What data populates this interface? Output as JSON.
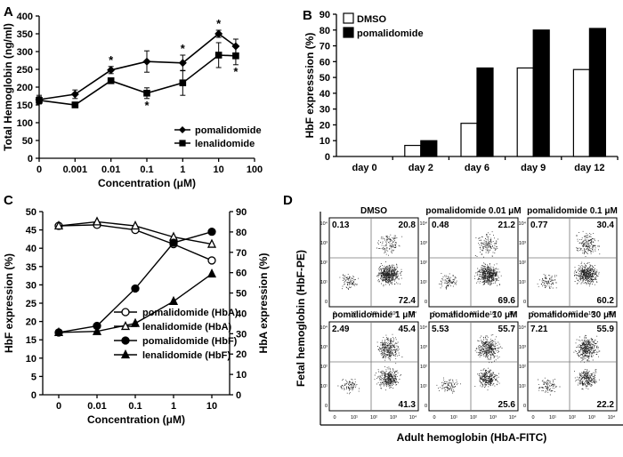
{
  "panels": {
    "A": "A",
    "B": "B",
    "C": "C",
    "D": "D"
  },
  "chart_data": [
    {
      "id": "A",
      "type": "line",
      "title": "",
      "xlabel": "Concentration (μM)",
      "ylabel": "Total Hemoglobin (ng/ml)",
      "xscale": "log",
      "x_tick_labels": [
        "0",
        "0.001",
        "0.01",
        "0.1",
        "1",
        "10",
        "100"
      ],
      "ylim": [
        0,
        400
      ],
      "y_ticks": [
        0,
        50,
        100,
        150,
        200,
        250,
        300,
        350,
        400
      ],
      "series": [
        {
          "name": "pomalidomide",
          "marker": "diamond",
          "x": [
            "0",
            "0.001",
            "0.01",
            "0.1",
            "1",
            "10",
            "30"
          ],
          "values": [
            165,
            180,
            248,
            272,
            268,
            350,
            315
          ],
          "errors": [
            12,
            12,
            10,
            30,
            22,
            10,
            20
          ],
          "significant": [
            false,
            false,
            true,
            false,
            true,
            true,
            false
          ]
        },
        {
          "name": "lenalidomide",
          "marker": "square",
          "x": [
            "0",
            "0.001",
            "0.01",
            "0.1",
            "1",
            "10",
            "30"
          ],
          "values": [
            163,
            150,
            218,
            183,
            212,
            290,
            288
          ],
          "errors": [
            10,
            5,
            5,
            15,
            35,
            35,
            25
          ],
          "significant": [
            false,
            false,
            false,
            true,
            false,
            false,
            true
          ]
        }
      ],
      "annotation": "*",
      "legend_position": "bottom-right"
    },
    {
      "id": "B",
      "type": "bar",
      "xlabel": "",
      "ylabel": "HbF expresssion (%)",
      "ylim": [
        0,
        90
      ],
      "y_ticks": [
        0,
        10,
        20,
        30,
        40,
        50,
        60,
        70,
        80,
        90
      ],
      "categories": [
        "day 0",
        "day 2",
        "day 6",
        "day 9",
        "day 12"
      ],
      "series": [
        {
          "name": "DMSO",
          "color": "#ffffff",
          "values": [
            0,
            7,
            21,
            56,
            55
          ]
        },
        {
          "name": "pomalidomide",
          "color": "#000000",
          "values": [
            0,
            10,
            56,
            80,
            81
          ]
        }
      ],
      "legend_position": "top-left"
    },
    {
      "id": "C",
      "type": "line",
      "xlabel": "Concentration (μM)",
      "ylabel": "HbF expression (%)",
      "ylabel_right": "HbA expression (%)",
      "x_tick_labels": [
        "0",
        "0.01",
        "0.1",
        "1",
        "10"
      ],
      "ylim": [
        0,
        50
      ],
      "y_ticks": [
        0,
        5,
        10,
        15,
        20,
        25,
        30,
        35,
        40,
        45,
        50
      ],
      "ylim_right": [
        0,
        90
      ],
      "y_ticks_right": [
        0,
        10,
        20,
        30,
        40,
        50,
        60,
        70,
        80,
        90
      ],
      "series": [
        {
          "name": "pomalidomide (HbA)",
          "marker": "circle-open",
          "axis": "right",
          "values": [
            83,
            83.5,
            81,
            74,
            66
          ]
        },
        {
          "name": "lenalidomide (HbA)",
          "marker": "triangle-open",
          "axis": "right",
          "values": [
            83,
            85,
            83,
            77.5,
            74
          ]
        },
        {
          "name": "pomalidomide (HbF)",
          "marker": "circle-filled",
          "axis": "left",
          "values": [
            17,
            18.8,
            29,
            41.5,
            44.5
          ]
        },
        {
          "name": "lenalidomide (HbF)",
          "marker": "triangle-filled",
          "axis": "left",
          "values": [
            17,
            17.3,
            19.5,
            25.5,
            33
          ]
        }
      ],
      "legend_position": "bottom-center"
    },
    {
      "id": "D",
      "type": "scatter",
      "xlabel": "Adult hemoglobin (HbA-FITC)",
      "ylabel": "Fetal hemoglobin (HbF-PE)",
      "axis_tick_labels": [
        "0",
        "10¹",
        "10²",
        "10³",
        "10⁴"
      ],
      "subplots": [
        {
          "title": "DMSO",
          "quadrants": {
            "top_left": "0.13",
            "top_right": "20.8",
            "bottom_right": "72.4"
          }
        },
        {
          "title": "pomalidomide 0.01 μM",
          "quadrants": {
            "top_left": "0.48",
            "top_right": "21.2",
            "bottom_right": "69.6"
          }
        },
        {
          "title": "pomalidomide 0.1 μM",
          "quadrants": {
            "top_left": "0.77",
            "top_right": "30.4",
            "bottom_right": "60.2"
          }
        },
        {
          "title": "pomalidomide 1 μM",
          "quadrants": {
            "top_left": "2.49",
            "top_right": "45.4",
            "bottom_right": "41.3"
          }
        },
        {
          "title": "pomalidomide 10 μM",
          "quadrants": {
            "top_left": "5.53",
            "top_right": "55.7",
            "bottom_right": "25.6"
          }
        },
        {
          "title": "pomalidomide 30 μM",
          "quadrants": {
            "top_left": "7.21",
            "top_right": "55.9",
            "bottom_right": "22.2"
          }
        }
      ]
    }
  ]
}
